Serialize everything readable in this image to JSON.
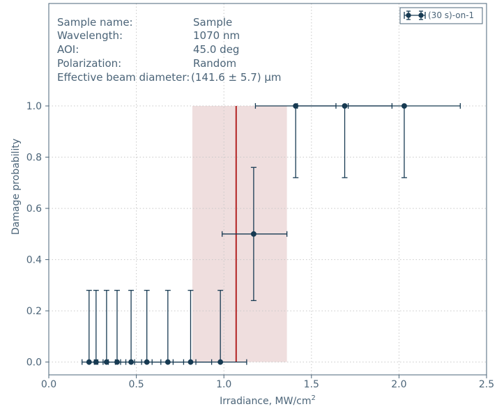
{
  "chart_data": {
    "type": "scatter",
    "xlabel_base": "Irradiance, MW/cm",
    "xlabel_sup": "2",
    "ylabel": "Damage probability",
    "xlim": [
      0.0,
      2.5
    ],
    "ylim": [
      -0.05,
      1.4
    ],
    "x_ticks": [
      0.0,
      0.5,
      1.0,
      1.5,
      2.0,
      2.5
    ],
    "x_tick_labels": [
      "0.0",
      "0.5",
      "1.0",
      "1.5",
      "2.0",
      "2.5"
    ],
    "y_ticks": [
      0.0,
      0.2,
      0.4,
      0.6,
      0.8,
      1.0
    ],
    "y_tick_labels": [
      "0.0",
      "0.2",
      "0.4",
      "0.6",
      "0.8",
      "1.0"
    ],
    "grid": true,
    "legend": {
      "placement": "top-right",
      "entries": [
        "(30 s)-on-1"
      ]
    },
    "info": [
      {
        "label": "Sample name:",
        "value": "Sample"
      },
      {
        "label": "Wavelength:",
        "value": "1070 nm"
      },
      {
        "label": "AOI:",
        "value": "45.0 deg"
      },
      {
        "label": "Polarization:",
        "value": "Random"
      },
      {
        "label": "Effective beam diameter:",
        "value": "(141.6 ± 5.7) μm"
      }
    ],
    "threshold": {
      "x": 1.07,
      "band": [
        0.82,
        1.36
      ],
      "y_range": [
        0.0,
        1.0
      ]
    },
    "series": [
      {
        "name": "(30 s)-on-1",
        "points": [
          {
            "x": 0.23,
            "y": 0.0,
            "xerr": [
              0.19,
              0.26
            ],
            "yerr": [
              0.0,
              0.28
            ]
          },
          {
            "x": 0.27,
            "y": 0.0,
            "xerr": [
              0.23,
              0.31
            ],
            "yerr": [
              0.0,
              0.28
            ]
          },
          {
            "x": 0.33,
            "y": 0.0,
            "xerr": [
              0.28,
              0.38
            ],
            "yerr": [
              0.0,
              0.28
            ]
          },
          {
            "x": 0.39,
            "y": 0.0,
            "xerr": [
              0.34,
              0.44
            ],
            "yerr": [
              0.0,
              0.28
            ]
          },
          {
            "x": 0.47,
            "y": 0.0,
            "xerr": [
              0.41,
              0.53
            ],
            "yerr": [
              0.0,
              0.28
            ]
          },
          {
            "x": 0.56,
            "y": 0.0,
            "xerr": [
              0.49,
              0.64
            ],
            "yerr": [
              0.0,
              0.28
            ]
          },
          {
            "x": 0.68,
            "y": 0.0,
            "xerr": [
              0.59,
              0.77
            ],
            "yerr": [
              0.0,
              0.28
            ]
          },
          {
            "x": 0.81,
            "y": 0.0,
            "xerr": [
              0.71,
              0.93
            ],
            "yerr": [
              0.0,
              0.28
            ]
          },
          {
            "x": 0.98,
            "y": 0.0,
            "xerr": [
              0.84,
              1.13
            ],
            "yerr": [
              0.0,
              0.28
            ]
          },
          {
            "x": 1.17,
            "y": 0.5,
            "xerr": [
              0.99,
              1.36
            ],
            "yerr": [
              0.24,
              0.76
            ]
          },
          {
            "x": 1.41,
            "y": 1.0,
            "xerr": [
              1.18,
              1.64
            ],
            "yerr": [
              0.72,
              1.0
            ]
          },
          {
            "x": 1.69,
            "y": 1.0,
            "xerr": [
              1.42,
              1.96
            ],
            "yerr": [
              0.72,
              1.0
            ]
          },
          {
            "x": 2.03,
            "y": 1.0,
            "xerr": [
              1.71,
              2.35
            ],
            "yerr": [
              0.72,
              1.0
            ]
          }
        ]
      }
    ]
  },
  "colors": {
    "series": "#173a52",
    "threshold_line": "#b22222",
    "band": "#efdede",
    "axis": "#4b6478",
    "grid": "#c8c8c8"
  }
}
